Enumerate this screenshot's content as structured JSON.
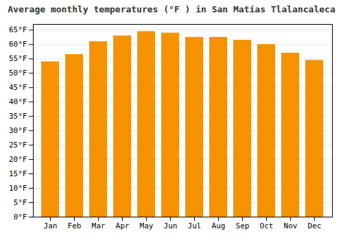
{
  "chart_data": {
    "type": "bar",
    "title": "Average monthly temperatures (°F ) in San Matías Tlalancaleca",
    "categories": [
      "Jan",
      "Feb",
      "Mar",
      "Apr",
      "May",
      "Jun",
      "Jul",
      "Aug",
      "Sep",
      "Oct",
      "Nov",
      "Dec"
    ],
    "values": [
      54.0,
      56.5,
      61.0,
      63.0,
      64.5,
      64.0,
      62.5,
      62.5,
      61.5,
      60.0,
      57.0,
      54.5
    ],
    "color": "#F59200",
    "ylim": [
      0,
      67
    ],
    "yticks": [
      {
        "value": 0,
        "label": "0°F"
      },
      {
        "value": 5,
        "label": "5°F"
      },
      {
        "value": 10,
        "label": "10°F"
      },
      {
        "value": 15,
        "label": "15°F"
      },
      {
        "value": 20,
        "label": "20°F"
      },
      {
        "value": 25,
        "label": "25°F"
      },
      {
        "value": 30,
        "label": "30°F"
      },
      {
        "value": 35,
        "label": "35°F"
      },
      {
        "value": 40,
        "label": "40°F"
      },
      {
        "value": 45,
        "label": "45°F"
      },
      {
        "value": 50,
        "label": "50°F"
      },
      {
        "value": 55,
        "label": "55°F"
      },
      {
        "value": 60,
        "label": "60°F"
      },
      {
        "value": 65,
        "label": "65°F"
      }
    ],
    "grid": true
  }
}
